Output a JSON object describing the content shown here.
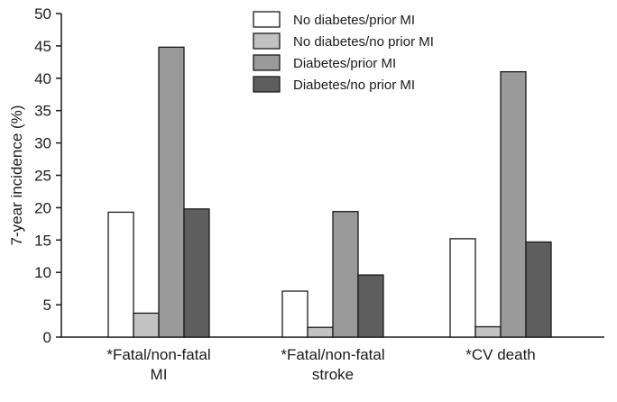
{
  "chart_data": {
    "type": "bar",
    "title": "",
    "xlabel": "",
    "ylabel": "7-year incidence (%)",
    "ylim": [
      0,
      50
    ],
    "yticks": [
      0,
      5,
      10,
      15,
      20,
      25,
      30,
      35,
      40,
      45,
      50
    ],
    "categories": [
      [
        "*Fatal/non-fatal",
        "MI"
      ],
      [
        "*Fatal/non-fatal",
        "stroke"
      ],
      [
        "*CV death"
      ]
    ],
    "series": [
      {
        "name": "No diabetes/prior MI",
        "color": "#ffffff",
        "values": [
          19.3,
          7.1,
          15.2
        ]
      },
      {
        "name": "No diabetes/no prior MI",
        "color": "#c2c2c2",
        "values": [
          3.7,
          1.5,
          1.6
        ]
      },
      {
        "name": "Diabetes/prior MI",
        "color": "#9a9a9a",
        "values": [
          44.8,
          19.4,
          41.0
        ]
      },
      {
        "name": "Diabetes/no prior MI",
        "color": "#5e5e5e",
        "values": [
          19.8,
          9.6,
          14.7
        ]
      }
    ],
    "grid": false,
    "legend_position": "top-right"
  }
}
